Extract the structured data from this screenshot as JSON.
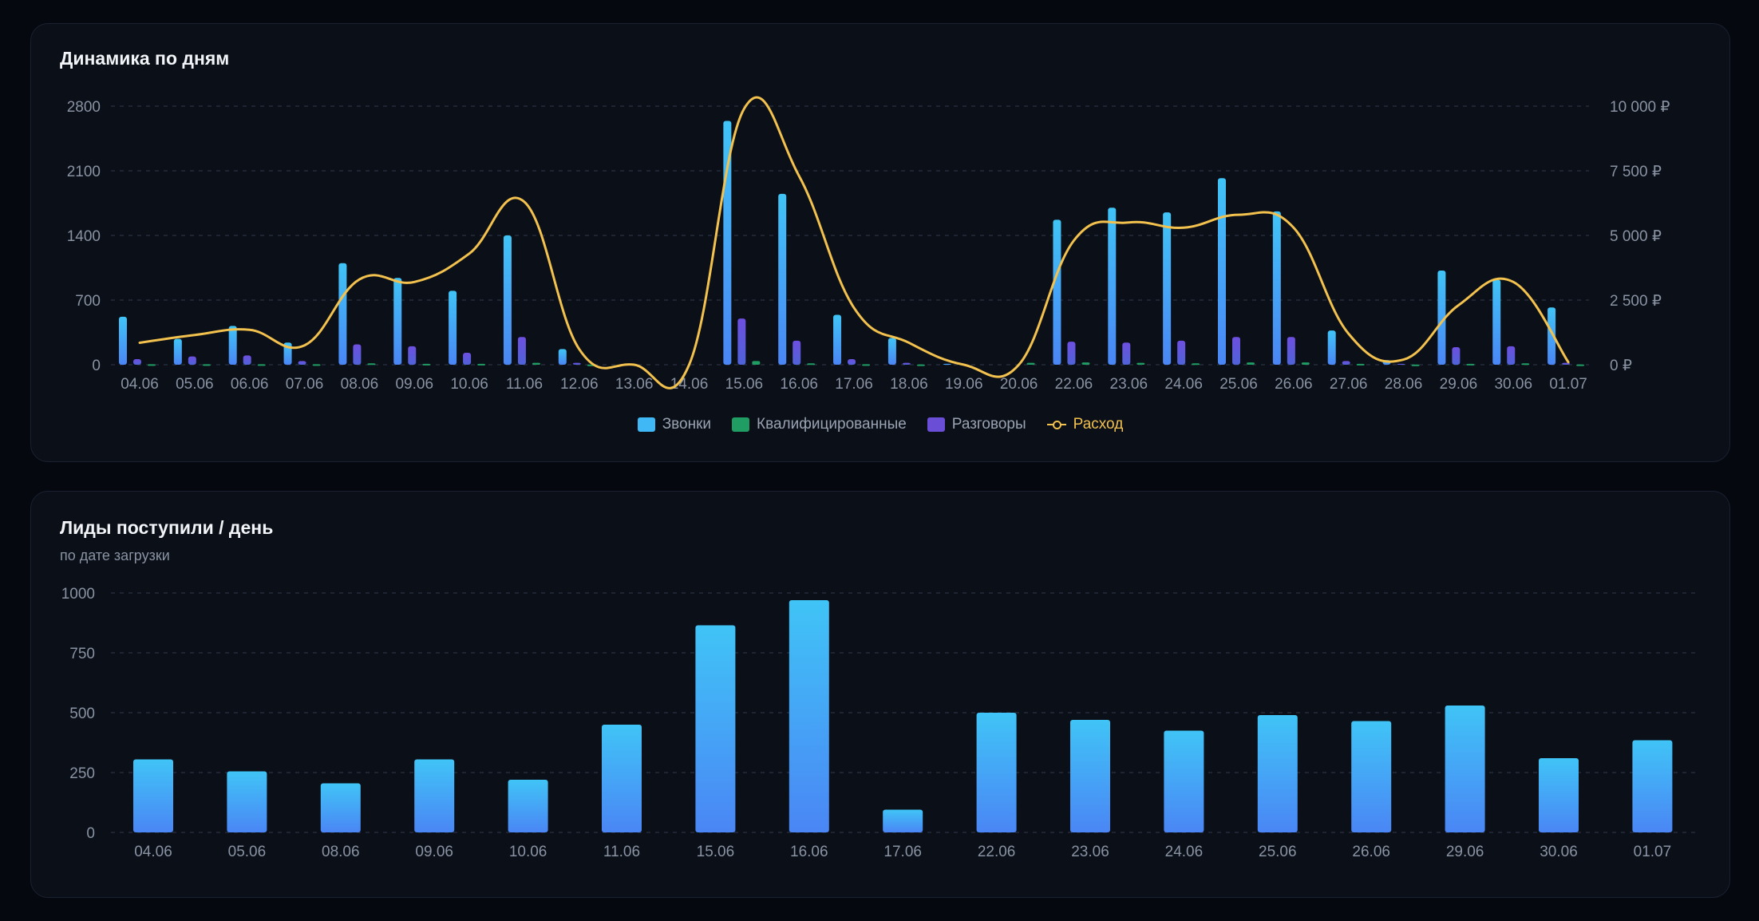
{
  "colors": {
    "calls": "#3fb8f5",
    "qualified": "#1f9d63",
    "talks": "#6a4fd6",
    "spend": "#f2c14e",
    "grid": "#2a3242"
  },
  "chart_data": [
    {
      "type": "bar",
      "title": "Динамика по дням",
      "categories": [
        "04.06",
        "05.06",
        "06.06",
        "07.06",
        "08.06",
        "09.06",
        "10.06",
        "11.06",
        "12.06",
        "13.06",
        "14.06",
        "15.06",
        "16.06",
        "17.06",
        "18.06",
        "19.06",
        "20.06",
        "22.06",
        "23.06",
        "24.06",
        "25.06",
        "26.06",
        "27.06",
        "28.06",
        "29.06",
        "30.06",
        "01.07"
      ],
      "y_left_ticks": [
        "0",
        "700",
        "1400",
        "2100",
        "2800"
      ],
      "y_left_range": [
        0,
        2800
      ],
      "y_right_ticks": [
        "0 ₽",
        "2 500 ₽",
        "5 000 ₽",
        "7 500 ₽",
        "10 000 ₽"
      ],
      "y_right_range": [
        0,
        10000
      ],
      "grid": true,
      "legend_position": "bottom",
      "series": [
        {
          "name": "Звонки",
          "type": "bar",
          "axis": "left",
          "values": [
            520,
            280,
            420,
            240,
            1100,
            940,
            800,
            1400,
            170,
            0,
            0,
            2640,
            1850,
            540,
            290,
            10,
            0,
            1570,
            1700,
            1650,
            2020,
            1660,
            370,
            50,
            1020,
            920,
            620
          ]
        },
        {
          "name": "Квалифицированные",
          "type": "bar",
          "axis": "left",
          "values": [
            5,
            5,
            5,
            5,
            15,
            10,
            10,
            20,
            2,
            0,
            0,
            40,
            15,
            5,
            3,
            0,
            20,
            25,
            20,
            15,
            25,
            25,
            10,
            2,
            10,
            15,
            3
          ]
        },
        {
          "name": "Разговоры",
          "type": "bar",
          "axis": "left",
          "values": [
            60,
            90,
            100,
            40,
            220,
            200,
            130,
            300,
            20,
            0,
            0,
            500,
            260,
            60,
            20,
            0,
            0,
            250,
            240,
            260,
            300,
            300,
            40,
            10,
            190,
            200,
            20
          ]
        },
        {
          "name": "Расход",
          "type": "line",
          "axis": "right",
          "values": [
            850,
            1150,
            1350,
            750,
            3300,
            3200,
            4300,
            6300,
            600,
            0,
            0,
            9900,
            7300,
            2200,
            850,
            0,
            0,
            4800,
            5500,
            5300,
            5800,
            5300,
            1200,
            200,
            2300,
            3200,
            100
          ]
        }
      ]
    },
    {
      "type": "bar",
      "title": "Лиды поступили / день",
      "subtitle": "по дате загрузки",
      "categories": [
        "04.06",
        "05.06",
        "08.06",
        "09.06",
        "10.06",
        "11.06",
        "15.06",
        "16.06",
        "17.06",
        "22.06",
        "23.06",
        "24.06",
        "25.06",
        "26.06",
        "29.06",
        "30.06",
        "01.07"
      ],
      "y_ticks": [
        "0",
        "250",
        "500",
        "750",
        "1000"
      ],
      "ylim": [
        0,
        1000
      ],
      "grid": true,
      "series": [
        {
          "values": [
            305,
            255,
            205,
            305,
            220,
            450,
            865,
            970,
            95,
            500,
            470,
            425,
            490,
            465,
            530,
            310,
            385
          ]
        }
      ]
    }
  ],
  "legend": {
    "calls": "Звонки",
    "qualified": "Квалифицированные",
    "talks": "Разговоры",
    "spend": "Расход"
  }
}
